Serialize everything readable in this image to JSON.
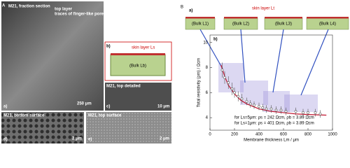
{
  "panel_a": {
    "label": "A",
    "image_a": {
      "title": "M21, fraction section",
      "top_layer": "top layer",
      "pores": "traces of finger-like pores",
      "scale": "250 μm",
      "tag": "a)"
    },
    "image_b": {
      "skin": "skin layer Ls",
      "bulk": "(Bulk Lb)",
      "tag": "b)"
    },
    "image_c": {
      "title": "M21, top detailed",
      "scale": "10 μm",
      "tag": "c)"
    },
    "image_d": {
      "title": "M21, bottom surface",
      "scale": "2 μm",
      "tag": "d)"
    },
    "image_e": {
      "title": "M21, top surface",
      "scale": "2 μm",
      "tag": "e)"
    }
  },
  "panel_b": {
    "label": "B",
    "sub_a": "a)",
    "skin": "skin layer Lt",
    "bulks": [
      "(Bulk L1)",
      "(Bulk L2)",
      "(Bulk L3)",
      "(Bulk L4)"
    ],
    "sub_b": "b)"
  },
  "chart_data": {
    "type": "scatter",
    "xlabel": "Membrane thickness Lm / μm",
    "ylabel": "Total resistivity (ρm) / Ωcm",
    "xlim": [
      0,
      1000
    ],
    "xticks": [
      0,
      200,
      400,
      600,
      800,
      1000
    ],
    "ylim": [
      3,
      10.6
    ],
    "yticks": [
      4,
      6,
      8,
      10
    ],
    "annotations": [
      "for Ls=5μm: ρs = 242 Ωcm, ρb = 3.89 Ωcm",
      "for Ls=1μm: ρs = 401 Ωcm, ρb = 3.89 Ωcm"
    ],
    "series": [
      {
        "color": "#555555",
        "x": [
          100,
          120,
          150,
          180,
          200,
          230,
          260,
          300,
          330,
          360,
          400,
          430,
          460,
          500,
          540,
          580,
          620,
          700,
          760,
          800,
          860,
          900
        ],
        "values": [
          7.8,
          7.2,
          6.8,
          6.3,
          6.0,
          5.7,
          5.5,
          5.3,
          5.1,
          5.0,
          4.9,
          4.8,
          4.7,
          4.7,
          4.6,
          4.6,
          4.5,
          4.5,
          4.4,
          4.4,
          4.4,
          4.3
        ],
        "errors": [
          0.6,
          0.5,
          0.5,
          0.5,
          0.4,
          0.4,
          0.4,
          0.3,
          0.3,
          0.3,
          0.3,
          0.3,
          0.3,
          0.3,
          0.3,
          0.3,
          0.3,
          0.3,
          0.3,
          0.3,
          0.3,
          0.3
        ]
      }
    ],
    "fit": {
      "color": "#c0152f",
      "x": [
        90,
        120,
        150,
        200,
        250,
        300,
        400,
        500,
        600,
        700,
        800,
        950
      ],
      "values": [
        8.2,
        7.3,
        6.6,
        5.9,
        5.4,
        5.1,
        4.7,
        4.5,
        4.4,
        4.3,
        4.25,
        4.2
      ]
    }
  }
}
